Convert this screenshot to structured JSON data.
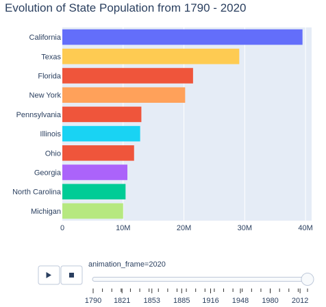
{
  "chart_data": {
    "type": "bar",
    "orientation": "horizontal",
    "title": "Evolution of State Population from 1790 - 2020",
    "xlabel": "",
    "ylabel": "",
    "xlim": [
      0,
      41000000
    ],
    "x_ticks": [
      0,
      10000000,
      20000000,
      30000000,
      40000000
    ],
    "x_tick_labels": [
      "0",
      "10M",
      "20M",
      "30M",
      "40M"
    ],
    "grid": true,
    "categories": [
      "California",
      "Texas",
      "Florida",
      "New York",
      "Pennsylvania",
      "Illinois",
      "Ohio",
      "Georgia",
      "North Carolina",
      "Michigan"
    ],
    "values": [
      39500000,
      29100000,
      21500000,
      20200000,
      13000000,
      12800000,
      11800000,
      10700000,
      10400000,
      10000000
    ],
    "colors": [
      "#636efa",
      "#fecb52",
      "#ef553b",
      "#ffa15a",
      "#ef553b",
      "#19d3f3",
      "#ef553b",
      "#ab63fa",
      "#00cc96",
      "#b6e880"
    ]
  },
  "animation": {
    "play_icon": "play-icon",
    "stop_icon": "stop-icon",
    "current_label": "animation_frame=2020",
    "current_value": 2020,
    "range": [
      1790,
      2020
    ],
    "tick_labels": [
      "1790",
      "1821",
      "1853",
      "1885",
      "1916",
      "1948",
      "1980",
      "2012"
    ]
  }
}
